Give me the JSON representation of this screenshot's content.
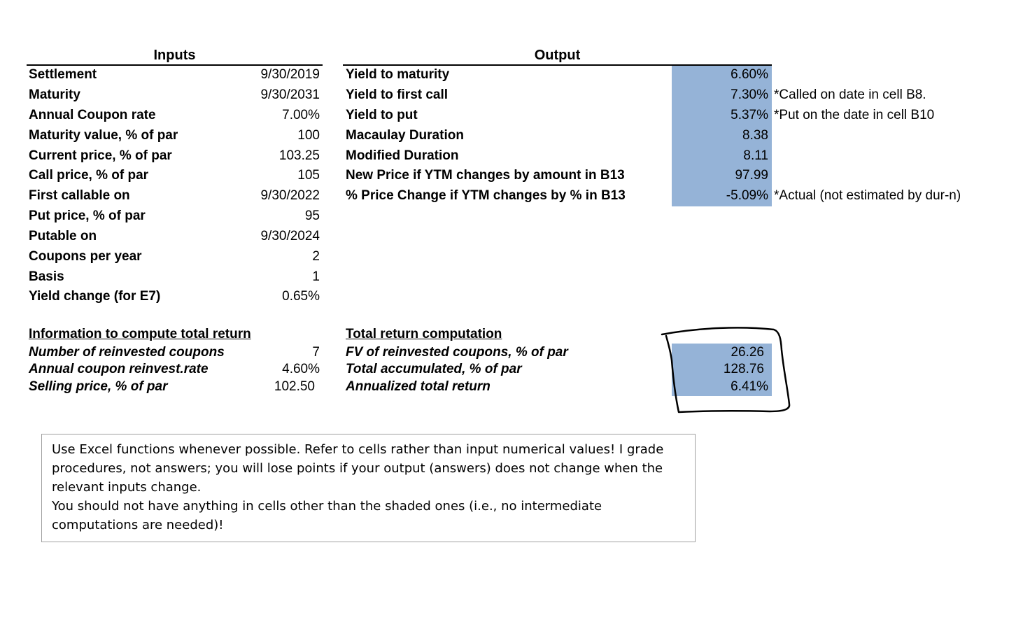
{
  "inputs": {
    "header": "Inputs",
    "rows": [
      {
        "label": "Settlement",
        "value": "9/30/2019"
      },
      {
        "label": "Maturity",
        "value": "9/30/2031"
      },
      {
        "label": "Annual Coupon rate",
        "value": "7.00%"
      },
      {
        "label": "Maturity value, % of par",
        "value": "100"
      },
      {
        "label": "Current price, % of par",
        "value": "103.25"
      },
      {
        "label": "Call price, % of par",
        "value": "105"
      },
      {
        "label": "First callable on",
        "value": "9/30/2022"
      },
      {
        "label": "Put price, % of par",
        "value": "95"
      },
      {
        "label": "Putable on",
        "value": "9/30/2024"
      },
      {
        "label": "Coupons per year",
        "value": "2"
      },
      {
        "label": "Basis",
        "value": "1"
      },
      {
        "label": "Yield change (for E7)",
        "value": "0.65%"
      }
    ]
  },
  "output": {
    "header": "Output",
    "rows": [
      {
        "label": "Yield to maturity",
        "value": "6.60%",
        "note": ""
      },
      {
        "label": "Yield to first call",
        "value": "7.30%",
        "note": "*Called on date in cell B8."
      },
      {
        "label": "Yield to put",
        "value": "5.37%",
        "note": "*Put on the date in cell B10"
      },
      {
        "label": "Macaulay Duration",
        "value": "8.38",
        "note": ""
      },
      {
        "label": "Modified Duration",
        "value": "8.11",
        "note": ""
      },
      {
        "label": "New Price if YTM changes by amount in B13",
        "value": "97.99",
        "note": ""
      },
      {
        "label": "% Price Change if YTM changes by % in B13",
        "value": "-5.09%",
        "note": "*Actual (not estimated by dur-n)"
      }
    ]
  },
  "total_return_info": {
    "header": "Information to compute total return",
    "rows": [
      {
        "label": "Number of reinvested coupons",
        "value": "7"
      },
      {
        "label": "Annual coupon reinvest.rate",
        "value": "4.60%"
      },
      {
        "label": "Selling price, % of par",
        "value": "102.50"
      }
    ]
  },
  "total_return_computation": {
    "header": "Total return computation",
    "rows": [
      {
        "label": "FV of reinvested coupons, % of par",
        "value": "26.26"
      },
      {
        "label": "Total accumulated, % of par",
        "value": "128.76"
      },
      {
        "label": "Annualized total return",
        "value": "6.41%"
      }
    ]
  },
  "instructions": {
    "paragraph1": "Use Excel functions whenever possible. Refer to cells rather than input numerical values!  I grade procedures, not answers; you will lose points if your output (answers) does not change when the relevant inputs change.",
    "paragraph2": "You should not have anything in cells other than the shaded ones (i.e., no intermediate computations are needed)!"
  },
  "colors": {
    "shade": "#95b3d7",
    "box_border": "#a0a0a0"
  }
}
